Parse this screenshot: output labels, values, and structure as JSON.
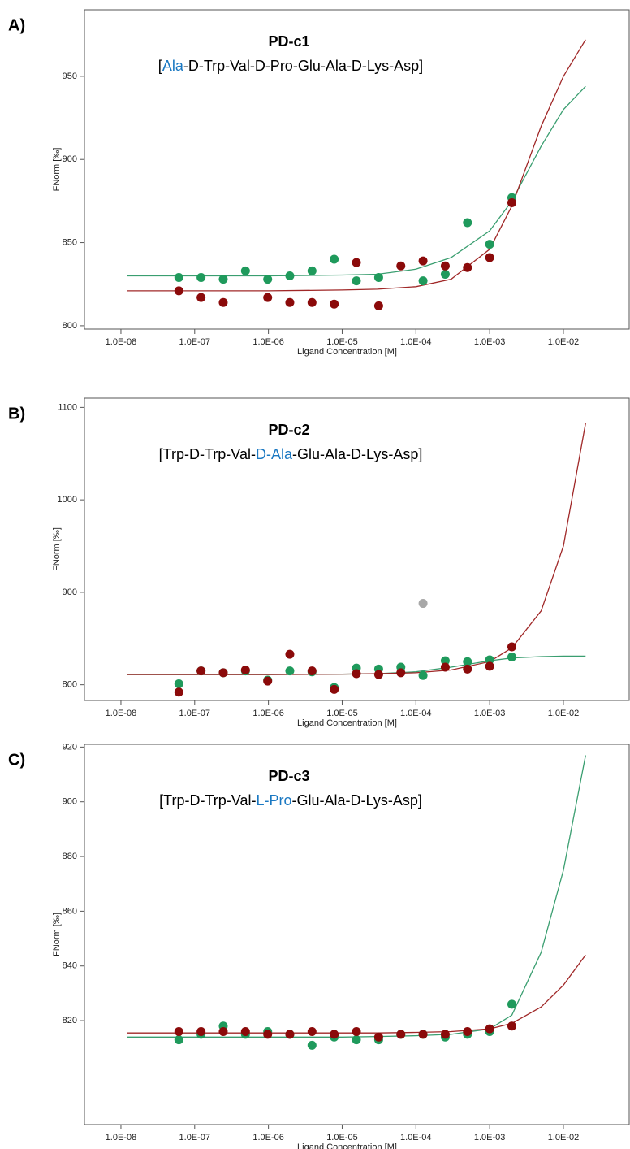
{
  "chart_data": [
    {
      "type": "scatter",
      "panel_label": "A)",
      "title": "PD-c1",
      "subtitle_parts": [
        {
          "text": "["
        },
        {
          "text": "Ala",
          "color": "#1a78c2"
        },
        {
          "text": "-D-Trp-Val-D-Pro-Glu-Ala-D-Lys-Asp]"
        }
      ],
      "xlabel": "Ligand Concentration [M]",
      "ylabel": "FNorm [‰]",
      "xscale": "log",
      "xlim": [
        3.2e-09,
        0.078
      ],
      "ylim": [
        798,
        990
      ],
      "xticks": [
        {
          "value": 1e-08,
          "label": "1.0E-08"
        },
        {
          "value": 1e-07,
          "label": "1.0E-07"
        },
        {
          "value": 1e-06,
          "label": "1.0E-06"
        },
        {
          "value": 1e-05,
          "label": "1.0E-05"
        },
        {
          "value": 0.0001,
          "label": "1.0E-04"
        },
        {
          "value": 0.001,
          "label": "1.0E-03"
        },
        {
          "value": 0.01,
          "label": "1.0E-02"
        }
      ],
      "yticks": [
        800,
        850,
        900,
        950
      ],
      "x": [
        6.1e-08,
        1.22e-07,
        2.44e-07,
        4.88e-07,
        9.77e-07,
        1.95e-06,
        3.9e-06,
        7.8e-06,
        1.56e-05,
        3.125e-05,
        6.25e-05,
        0.000125,
        0.00025,
        0.0005,
        0.001,
        0.002
      ],
      "series": [
        {
          "mode": "line",
          "color": "#3a9e70",
          "x": [
            1.2e-08,
            1e-06,
            1e-05,
            3e-05,
            0.0001,
            0.0003,
            0.001,
            0.002,
            0.005,
            0.01,
            0.02
          ],
          "values": [
            830,
            830,
            830.5,
            831,
            834,
            841,
            857,
            875,
            908,
            930,
            944
          ]
        },
        {
          "mode": "line",
          "color": "#a02828",
          "x": [
            1.2e-08,
            1e-06,
            1e-05,
            3e-05,
            0.0001,
            0.0003,
            0.001,
            0.002,
            0.005,
            0.01,
            0.02
          ],
          "values": [
            821,
            821,
            821.5,
            822,
            823.5,
            828,
            846,
            872,
            920,
            950,
            972
          ]
        },
        {
          "mode": "markers",
          "color": "#1f9a5c",
          "values": [
            829,
            829,
            828,
            833,
            828,
            830,
            833,
            840,
            827,
            829,
            null,
            827,
            831,
            862,
            849,
            877
          ]
        },
        {
          "mode": "markers",
          "color": "#8b0a0a",
          "values": [
            821,
            817,
            814,
            null,
            817,
            814,
            814,
            813,
            838,
            812,
            836,
            839,
            836,
            835,
            841,
            874
          ]
        }
      ]
    },
    {
      "type": "scatter",
      "panel_label": "B)",
      "title": "PD-c2",
      "subtitle_parts": [
        {
          "text": "[Trp-D-Trp-Val-"
        },
        {
          "text": "D-Ala",
          "color": "#1a78c2"
        },
        {
          "text": "-Glu-Ala-D-Lys-Asp]"
        }
      ],
      "xlabel": "Ligand Concentration [M]",
      "ylabel": "FNorm [‰]",
      "xscale": "log",
      "xlim": [
        3.2e-09,
        0.078
      ],
      "ylim": [
        783,
        1110
      ],
      "xticks": [
        {
          "value": 1e-08,
          "label": "1.0E-08"
        },
        {
          "value": 1e-07,
          "label": "1.0E-07"
        },
        {
          "value": 1e-06,
          "label": "1.0E-06"
        },
        {
          "value": 1e-05,
          "label": "1.0E-05"
        },
        {
          "value": 0.0001,
          "label": "1.0E-04"
        },
        {
          "value": 0.001,
          "label": "1.0E-03"
        },
        {
          "value": 0.01,
          "label": "1.0E-02"
        }
      ],
      "yticks": [
        800,
        900,
        1000,
        1100
      ],
      "x": [
        6.1e-08,
        1.22e-07,
        2.44e-07,
        4.88e-07,
        9.77e-07,
        1.95e-06,
        3.9e-06,
        7.8e-06,
        1.56e-05,
        3.125e-05,
        6.25e-05,
        0.000125,
        0.00025,
        0.0005,
        0.001,
        0.002
      ],
      "series": [
        {
          "mode": "line",
          "color": "#3a9e70",
          "x": [
            1.2e-08,
            1e-06,
            1e-05,
            3e-05,
            0.0001,
            0.0003,
            0.001,
            0.002,
            0.005,
            0.01,
            0.02
          ],
          "values": [
            811,
            811,
            811.5,
            812,
            814,
            819,
            826,
            829,
            830.5,
            831,
            831
          ]
        },
        {
          "mode": "line",
          "color": "#a02828",
          "x": [
            1.2e-08,
            1e-06,
            1e-05,
            3e-05,
            0.0001,
            0.0003,
            0.001,
            0.002,
            0.005,
            0.01,
            0.02
          ],
          "values": [
            811,
            811,
            811.5,
            812,
            813,
            816,
            825,
            840,
            880,
            950,
            1083
          ]
        },
        {
          "mode": "markers",
          "color": "#1f9a5c",
          "values": [
            801,
            815,
            813,
            815,
            805,
            815,
            814,
            797,
            818,
            817,
            819,
            810,
            826,
            825,
            827,
            830
          ]
        },
        {
          "mode": "markers",
          "color": "#8b0a0a",
          "values": [
            792,
            815,
            813,
            816,
            804,
            833,
            815,
            795,
            812,
            811,
            813,
            null,
            819,
            817,
            820,
            841
          ]
        },
        {
          "mode": "markers",
          "color": "#a8a8a8",
          "values": [
            null,
            null,
            null,
            null,
            null,
            null,
            null,
            null,
            null,
            null,
            null,
            888,
            null,
            null,
            null,
            null
          ]
        }
      ]
    },
    {
      "type": "scatter",
      "panel_label": "C)",
      "title": "PD-c3",
      "subtitle_parts": [
        {
          "text": "[Trp-D-Trp-Val-"
        },
        {
          "text": "L-Pro",
          "color": "#1a78c2"
        },
        {
          "text": "-Glu-Ala-D-Lys-Asp]"
        }
      ],
      "xlabel": "Ligand Concentration [M]",
      "ylabel": "FNorm [‰]",
      "xscale": "log",
      "xlim": [
        3.2e-09,
        0.078
      ],
      "ylim": [
        782,
        921
      ],
      "xticks": [
        {
          "value": 1e-08,
          "label": "1.0E-08"
        },
        {
          "value": 1e-07,
          "label": "1.0E-07"
        },
        {
          "value": 1e-06,
          "label": "1.0E-06"
        },
        {
          "value": 1e-05,
          "label": "1.0E-05"
        },
        {
          "value": 0.0001,
          "label": "1.0E-04"
        },
        {
          "value": 0.001,
          "label": "1.0E-03"
        },
        {
          "value": 0.01,
          "label": "1.0E-02"
        }
      ],
      "yticks": [
        820,
        840,
        860,
        880,
        900,
        920
      ],
      "x": [
        6.1e-08,
        1.22e-07,
        2.44e-07,
        4.88e-07,
        9.77e-07,
        1.95e-06,
        3.9e-06,
        7.8e-06,
        1.56e-05,
        3.125e-05,
        6.25e-05,
        0.000125,
        0.00025,
        0.0005,
        0.001,
        0.002
      ],
      "series": [
        {
          "mode": "line",
          "color": "#3a9e70",
          "x": [
            1.2e-08,
            1e-06,
            1e-05,
            3e-05,
            0.0001,
            0.0003,
            0.001,
            0.002,
            0.005,
            0.01,
            0.02
          ],
          "values": [
            814,
            814,
            814,
            814.2,
            814.5,
            815,
            817,
            822,
            845,
            875,
            917
          ]
        },
        {
          "mode": "line",
          "color": "#a02828",
          "x": [
            1.2e-08,
            1e-06,
            1e-05,
            3e-05,
            0.0001,
            0.0003,
            0.001,
            0.002,
            0.005,
            0.01,
            0.02
          ],
          "values": [
            815.5,
            815.5,
            815.5,
            815.5,
            815.7,
            816,
            817,
            819,
            825,
            833,
            844
          ]
        },
        {
          "mode": "markers",
          "color": "#1f9a5c",
          "values": [
            813,
            815,
            818,
            815,
            816,
            815,
            811,
            814,
            813,
            813,
            815,
            815,
            814,
            815,
            816,
            826
          ]
        },
        {
          "mode": "markers",
          "color": "#8b0a0a",
          "values": [
            816,
            816,
            816,
            816,
            815,
            815,
            816,
            815,
            816,
            814,
            815,
            815,
            815,
            816,
            817,
            818
          ]
        }
      ]
    }
  ]
}
